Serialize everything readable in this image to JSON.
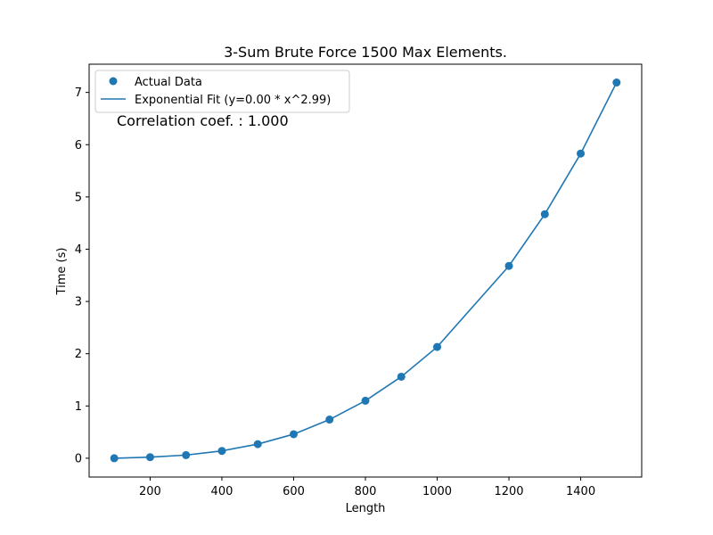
{
  "chart_data": {
    "type": "scatter",
    "title": "3-Sum Brute Force 1500 Max Elements.",
    "xlabel": "Length",
    "ylabel": "Time (s)",
    "xlim": [
      30,
      1570
    ],
    "ylim": [
      -0.36,
      7.54
    ],
    "xticks": [
      200,
      400,
      600,
      800,
      1000,
      1200,
      1400
    ],
    "yticks": [
      0,
      1,
      2,
      3,
      4,
      5,
      6,
      7
    ],
    "grid": false,
    "legend_position": "top-left",
    "color": "#1f77b4",
    "series": [
      {
        "name": "Actual Data",
        "kind": "scatter",
        "x": [
          100,
          200,
          300,
          400,
          500,
          600,
          700,
          800,
          900,
          1000,
          1200,
          1300,
          1400,
          1500
        ],
        "y": [
          0.0,
          0.02,
          0.06,
          0.14,
          0.27,
          0.46,
          0.74,
          1.1,
          1.56,
          2.13,
          3.68,
          4.67,
          5.83,
          7.19
        ]
      },
      {
        "name": "Exponential Fit (y=0.00 * x^2.99)",
        "kind": "line",
        "x": [
          100,
          200,
          300,
          400,
          500,
          600,
          700,
          800,
          900,
          1000,
          1200,
          1300,
          1400,
          1500
        ],
        "y": [
          0.0,
          0.02,
          0.06,
          0.14,
          0.27,
          0.46,
          0.74,
          1.1,
          1.56,
          2.13,
          3.68,
          4.67,
          5.83,
          7.19
        ]
      }
    ],
    "annotation": "Correlation coef. : 1.000"
  }
}
